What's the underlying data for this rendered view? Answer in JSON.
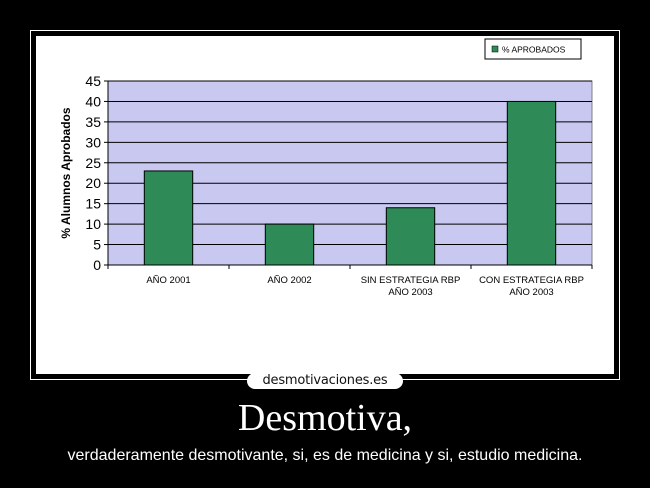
{
  "poster": {
    "logo": "desmotivaciones.es",
    "headline": "Desmotiva,",
    "caption": "verdaderamente desmotivante, si, es de medicina y si, estudio medicina."
  },
  "chart_data": {
    "type": "bar",
    "categories": [
      [
        "AÑO 2001"
      ],
      [
        "AÑO 2002"
      ],
      [
        "SIN ESTRATEGIA RBP",
        "AÑO 2003"
      ],
      [
        "CON ESTRATEGIA RBP",
        "AÑO 2003"
      ]
    ],
    "series": [
      {
        "name": "% APROBADOS",
        "values": [
          23,
          10,
          14,
          40
        ]
      }
    ],
    "ylabel": "% Alumnos Aprobados",
    "ylim": [
      0,
      45
    ],
    "yticks": [
      0,
      5,
      10,
      15,
      20,
      25,
      30,
      35,
      40,
      45
    ],
    "grid": true,
    "legend": "top-right",
    "colors": {
      "bar": "#2e8b57",
      "plot_bg": "#c8c8f0",
      "grid": "#000000"
    }
  }
}
